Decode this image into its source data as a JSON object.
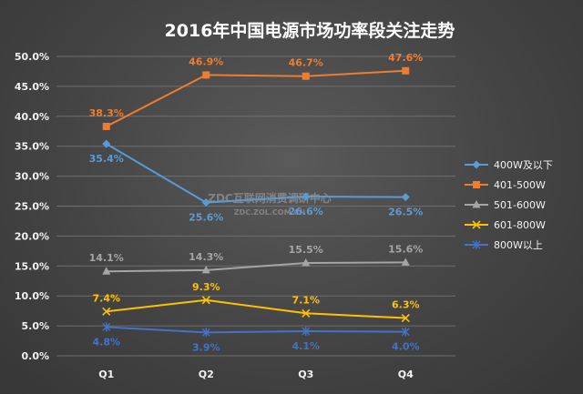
{
  "chart_data": {
    "type": "line",
    "title": "2016年中国电源市场功率段关注走势",
    "categories": [
      "Q1",
      "Q2",
      "Q3",
      "Q4"
    ],
    "ylim": [
      0,
      50
    ],
    "yticks": [
      "0.0%",
      "5.0%",
      "10.0%",
      "15.0%",
      "20.0%",
      "25.0%",
      "30.0%",
      "35.0%",
      "40.0%",
      "45.0%",
      "50.0%"
    ],
    "grid": "horizontal",
    "legend_position": "right",
    "series": [
      {
        "name": "400W及以下",
        "values": [
          35.4,
          25.6,
          26.6,
          26.5
        ],
        "labels": [
          "35.4%",
          "25.6%",
          "26.6%",
          "26.5%"
        ],
        "color": "#5b9bd5",
        "marker": "diamond",
        "label_pos": "below"
      },
      {
        "name": "401-500W",
        "values": [
          38.3,
          46.9,
          46.7,
          47.6
        ],
        "labels": [
          "38.3%",
          "46.9%",
          "46.7%",
          "47.6%"
        ],
        "color": "#ed7d31",
        "marker": "square",
        "label_pos": "above"
      },
      {
        "name": "501-600W",
        "values": [
          14.1,
          14.3,
          15.5,
          15.6
        ],
        "labels": [
          "14.1%",
          "14.3%",
          "15.5%",
          "15.6%"
        ],
        "color": "#a5a5a5",
        "marker": "triangle",
        "label_pos": "above"
      },
      {
        "name": "601-800W",
        "values": [
          7.4,
          9.3,
          7.1,
          6.3
        ],
        "labels": [
          "7.4%",
          "9.3%",
          "7.1%",
          "6.3%"
        ],
        "color": "#ffc000",
        "marker": "x",
        "label_pos": "above"
      },
      {
        "name": "800W以上",
        "values": [
          4.8,
          3.9,
          4.1,
          4.0
        ],
        "labels": [
          "4.8%",
          "3.9%",
          "4.1%",
          "4.0%"
        ],
        "color": "#4472c4",
        "marker": "star",
        "label_pos": "below"
      }
    ]
  },
  "watermark": {
    "line1": "ZDC互联网消费调研中心",
    "line2": "ZDC.ZOL.COM.CN"
  }
}
